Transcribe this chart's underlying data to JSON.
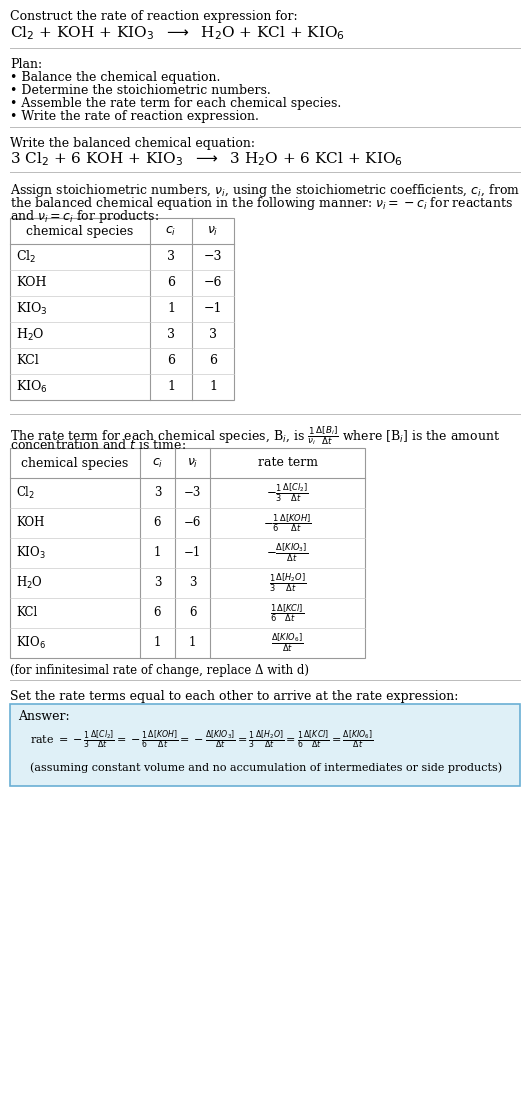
{
  "bg_color": "#ffffff",
  "text_color": "#000000",
  "section1_title": "Construct the rate of reaction expression for:",
  "plan_title": "Plan:",
  "plan_items": [
    "• Balance the chemical equation.",
    "• Determine the stoichiometric numbers.",
    "• Assemble the rate term for each chemical species.",
    "• Write the rate of reaction expression."
  ],
  "section2_title": "Write the balanced chemical equation:",
  "table1_headers": [
    "chemical species",
    "c_i",
    "v_i"
  ],
  "table1_rows": [
    [
      "Cl$_2$",
      "3",
      "−3"
    ],
    [
      "KOH",
      "6",
      "−6"
    ],
    [
      "KIO$_3$",
      "1",
      "−1"
    ],
    [
      "H$_2$O",
      "3",
      "3"
    ],
    [
      "KCl",
      "6",
      "6"
    ],
    [
      "KIO$_6$",
      "1",
      "1"
    ]
  ],
  "table2_headers": [
    "chemical species",
    "c_i",
    "v_i",
    "rate term"
  ],
  "table2_rows": [
    [
      "Cl$_2$",
      "3",
      "−3",
      "$-\\frac{1}{3}\\frac{\\Delta[Cl_2]}{\\Delta t}$"
    ],
    [
      "KOH",
      "6",
      "−6",
      "$-\\frac{1}{6}\\frac{\\Delta[KOH]}{\\Delta t}$"
    ],
    [
      "KIO$_3$",
      "1",
      "−1",
      "$-\\frac{\\Delta[KIO_3]}{\\Delta t}$"
    ],
    [
      "H$_2$O",
      "3",
      "3",
      "$\\frac{1}{3}\\frac{\\Delta[H_2O]}{\\Delta t}$"
    ],
    [
      "KCl",
      "6",
      "6",
      "$\\frac{1}{6}\\frac{\\Delta[KCl]}{\\Delta t}$"
    ],
    [
      "KIO$_6$",
      "1",
      "1",
      "$\\frac{\\Delta[KIO_6]}{\\Delta t}$"
    ]
  ],
  "infinitesimal_note": "(for infinitesimal rate of change, replace Δ with d)",
  "section5_intro": "Set the rate terms equal to each other to arrive at the rate expression:",
  "answer_box_bg": "#dff0f7",
  "answer_border_color": "#6aafd4",
  "answer_title": "Answer:",
  "answer_note": "(assuming constant volume and no accumulation of intermediates or side products)"
}
